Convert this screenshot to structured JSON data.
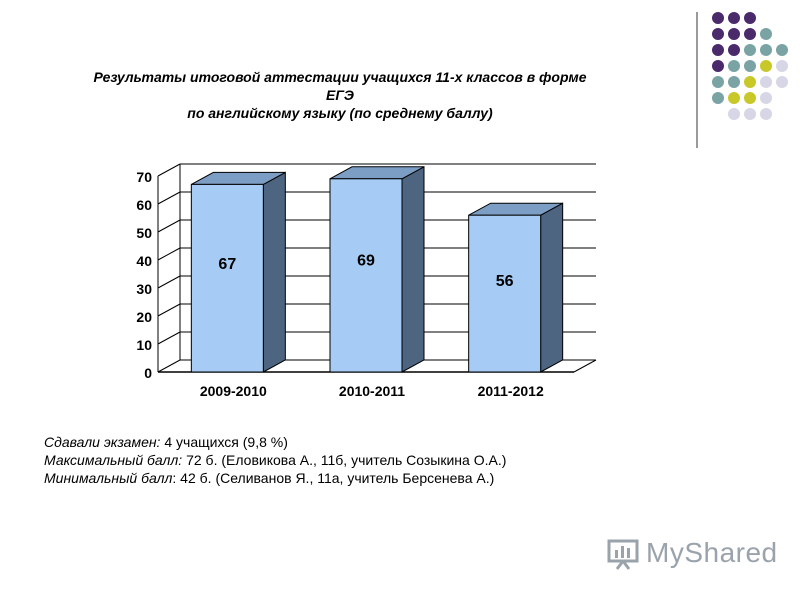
{
  "title": {
    "line1": "Результаты итоговой аттестации учащихся 11-х классов в форме",
    "line2": "ЕГЭ",
    "line3": "по английскому языку (по среднему баллу)"
  },
  "chart_data": {
    "type": "bar",
    "categories": [
      "2009-2010",
      "2010-2011",
      "2011-2012"
    ],
    "values": [
      67,
      69,
      56
    ],
    "ylim": [
      0,
      70
    ],
    "yticks": [
      0,
      10,
      20,
      30,
      40,
      50,
      60,
      70
    ],
    "grid": true,
    "style": "3d",
    "colors": {
      "bar_front": "#a6ccf5",
      "bar_top": "#7d9ec4",
      "bar_side": "#4d6580",
      "grid": "#000000"
    }
  },
  "notes": [
    {
      "label": "Сдавали экзамен:",
      "text": " 4 учащихся (9,8 %)"
    },
    {
      "label": "Максимальный балл:",
      "text": " 72 б. (Еловикова А., 11б, учитель Созыкина О.А.)"
    },
    {
      "label": "Минимальный балл",
      "text": ": 42 б. (Селиванов Я., 11а, учитель Берсенева А.)"
    }
  ],
  "decor": {
    "dot_colors": {
      "purple": "#4b2a6b",
      "teal": "#7aa3a3",
      "lime": "#c8c829",
      "lavender": "#d6d6e6"
    }
  },
  "logo": {
    "brand": "MyShared",
    "icon": "presentation-board-icon"
  }
}
